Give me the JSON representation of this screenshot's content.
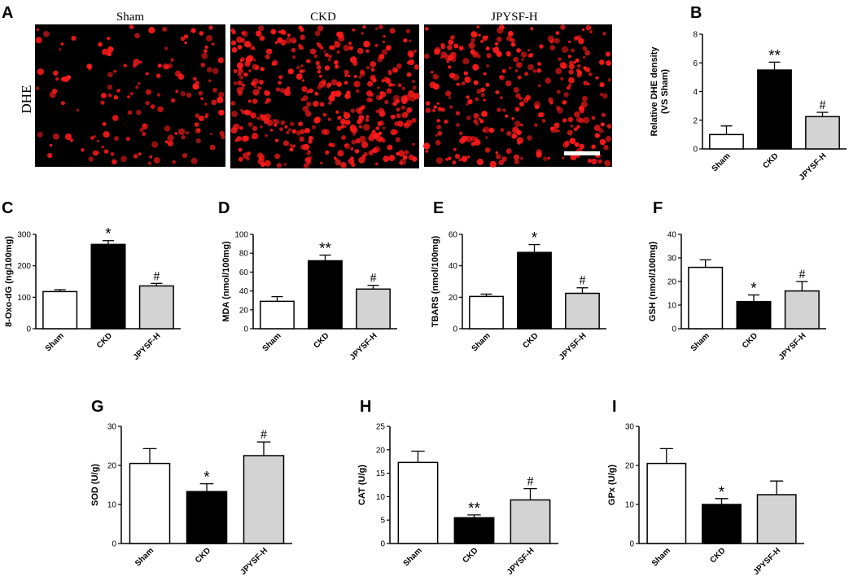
{
  "panel_a": {
    "letter": "A",
    "row_label": "DHE",
    "image_titles": [
      "Sham",
      "CKD",
      "JPYSF-H"
    ],
    "image_colors": {
      "background": "#000000",
      "stain": "#ff1a1a",
      "scale_bar": "#ffffff"
    }
  },
  "colors": {
    "sham": "#ffffff",
    "ckd": "#000000",
    "jpysf": "#d3d3d3",
    "outline": "#000000"
  },
  "chart_data": [
    {
      "id": "B",
      "letter": "B",
      "type": "bar",
      "categories": [
        "Sham",
        "CKD",
        "JPYSF-H"
      ],
      "values": [
        1.0,
        5.5,
        2.25
      ],
      "errors": [
        0.6,
        0.55,
        0.3
      ],
      "marks": [
        "",
        "**",
        "#"
      ],
      "ylabel": "Relative DHE density\n(VS Sham)",
      "ylim": [
        0,
        8
      ],
      "yticks": [
        0,
        2,
        4,
        6,
        8
      ],
      "grid": false,
      "legend": "none"
    },
    {
      "id": "C",
      "letter": "C",
      "type": "bar",
      "categories": [
        "Sham",
        "CKD",
        "JPYSF-H"
      ],
      "values": [
        118,
        268,
        136
      ],
      "errors": [
        6,
        12,
        8
      ],
      "marks": [
        "",
        "*",
        "#"
      ],
      "ylabel": "8-Oxo-dG (ng/100mg)",
      "ylim": [
        0,
        300
      ],
      "yticks": [
        0,
        100,
        200,
        300
      ],
      "grid": false,
      "legend": "none"
    },
    {
      "id": "D",
      "letter": "D",
      "type": "bar",
      "categories": [
        "Sham",
        "CKD",
        "JPYSF-H"
      ],
      "values": [
        29,
        72,
        42
      ],
      "errors": [
        5,
        6,
        4
      ],
      "marks": [
        "",
        "**",
        "#"
      ],
      "ylabel": "MDA (nmol/100mg)",
      "ylim": [
        0,
        100
      ],
      "yticks": [
        0,
        20,
        40,
        60,
        80,
        100
      ],
      "grid": false,
      "legend": "none"
    },
    {
      "id": "E",
      "letter": "E",
      "type": "bar",
      "categories": [
        "Sham",
        "CKD",
        "JPYSF-H"
      ],
      "values": [
        20.5,
        48.5,
        22.5
      ],
      "errors": [
        1.5,
        5,
        3.5
      ],
      "marks": [
        "",
        "*",
        "#"
      ],
      "ylabel": "TBARS (nmol/100mg)",
      "ylim": [
        0,
        60
      ],
      "yticks": [
        0,
        20,
        40,
        60
      ],
      "grid": false,
      "legend": "none"
    },
    {
      "id": "F",
      "letter": "F",
      "type": "bar",
      "categories": [
        "Sham",
        "CKD",
        "JPYSF-H"
      ],
      "values": [
        26,
        11.5,
        16
      ],
      "errors": [
        3.2,
        2.8,
        4
      ],
      "marks": [
        "",
        "*",
        "#"
      ],
      "ylabel": "GSH (nmol/100mg)",
      "ylim": [
        0,
        40
      ],
      "yticks": [
        0,
        10,
        20,
        30,
        40
      ],
      "grid": false,
      "legend": "none"
    },
    {
      "id": "G",
      "letter": "G",
      "type": "bar",
      "categories": [
        "Sham",
        "CKD",
        "JPYSF-H"
      ],
      "values": [
        20.5,
        13.3,
        22.5
      ],
      "errors": [
        3.8,
        2,
        3.5
      ],
      "marks": [
        "",
        "*",
        "#"
      ],
      "ylabel": "SOD (U/g)",
      "ylim": [
        0,
        30
      ],
      "yticks": [
        0,
        10,
        20,
        30
      ],
      "grid": false,
      "legend": "none"
    },
    {
      "id": "H",
      "letter": "H",
      "type": "bar",
      "categories": [
        "Sham",
        "CKD",
        "JPYSF-H"
      ],
      "values": [
        17.3,
        5.5,
        9.3
      ],
      "errors": [
        2.4,
        0.6,
        2.4
      ],
      "marks": [
        "",
        "**",
        "#"
      ],
      "ylabel": "CAT (U/g)",
      "ylim": [
        0,
        25
      ],
      "yticks": [
        0,
        5,
        10,
        15,
        20,
        25
      ],
      "grid": false,
      "legend": "none"
    },
    {
      "id": "I",
      "letter": "I",
      "type": "bar",
      "categories": [
        "Sham",
        "CKD",
        "JPYSF-H"
      ],
      "values": [
        20.5,
        10,
        12.5
      ],
      "errors": [
        3.8,
        1.5,
        3.5
      ],
      "marks": [
        "",
        "*",
        ""
      ],
      "ylabel": "GPx (U/g)",
      "ylim": [
        0,
        30
      ],
      "yticks": [
        0,
        10,
        20,
        30
      ],
      "grid": false,
      "legend": "none"
    }
  ]
}
